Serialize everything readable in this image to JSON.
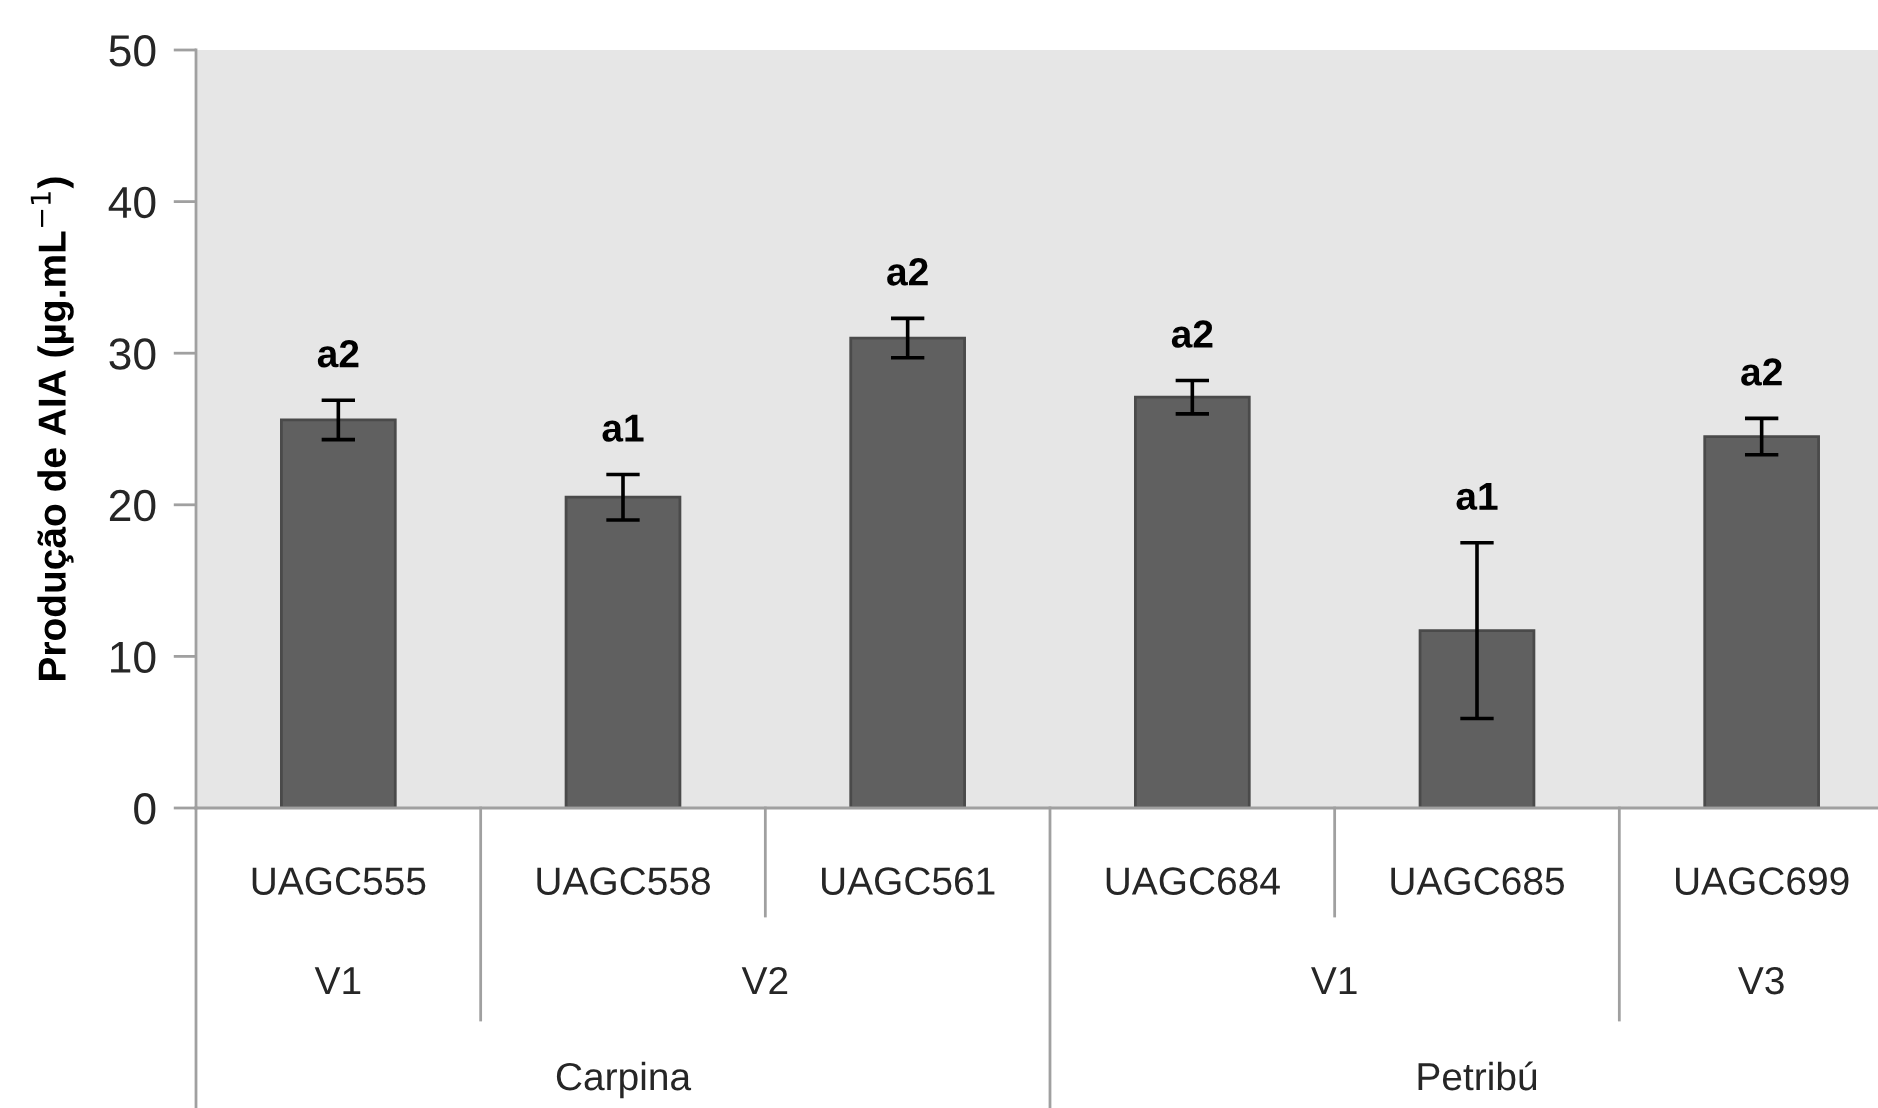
{
  "chart_data": {
    "type": "bar",
    "ylabel": "Produção de AIA (µg.mL$^{−1}$)",
    "categories": [
      "UAGC555",
      "UAGC558",
      "UAGC561",
      "UAGC684",
      "UAGC685",
      "UAGC699"
    ],
    "values": [
      25.6,
      20.5,
      31.0,
      27.1,
      11.7,
      24.5
    ],
    "errors": [
      1.3,
      1.5,
      1.3,
      1.1,
      5.8,
      1.2
    ],
    "value_labels": [
      "a2",
      "a1",
      "a2",
      "a2",
      "a1",
      "a2"
    ],
    "color": "#606060",
    "ylim": [
      0,
      50
    ],
    "yticks": [
      0,
      10,
      20,
      30,
      40,
      50
    ],
    "annotations": [
      "V1",
      "V2",
      "V1",
      "V3",
      "Carpina",
      "Petribú"
    ]
  }
}
